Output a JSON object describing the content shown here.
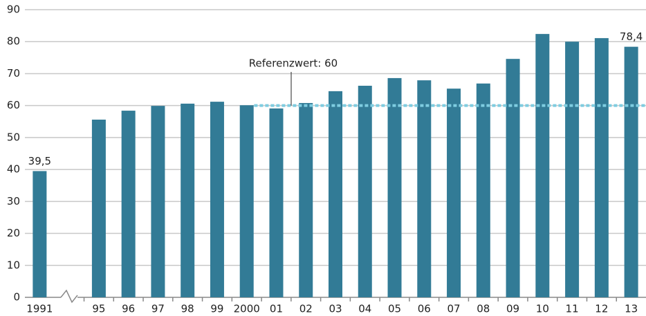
{
  "chart_data": {
    "type": "bar",
    "categories": [
      "1991",
      null,
      "95",
      "96",
      "97",
      "98",
      "99",
      "2000",
      "01",
      "02",
      "03",
      "04",
      "05",
      "06",
      "07",
      "08",
      "09",
      "10",
      "11",
      "12",
      "13"
    ],
    "values": [
      39.5,
      null,
      55.6,
      58.4,
      59.9,
      60.6,
      61.2,
      60.1,
      59.1,
      60.8,
      64.5,
      66.2,
      68.6,
      67.9,
      65.3,
      66.9,
      74.6,
      82.4,
      80.0,
      81.1,
      78.4
    ],
    "value_labels": [
      "39,5",
      null,
      null,
      null,
      null,
      null,
      null,
      null,
      null,
      null,
      null,
      null,
      null,
      null,
      null,
      null,
      null,
      null,
      null,
      null,
      "78,4"
    ],
    "color": "#327b96",
    "ylim": [
      0,
      90
    ],
    "yticks": [
      0,
      10,
      20,
      30,
      40,
      50,
      60,
      70,
      80,
      90
    ],
    "grid": true,
    "reference": {
      "value": 60,
      "label": "Referenzwert: 60",
      "color": "#7ecce0"
    }
  }
}
